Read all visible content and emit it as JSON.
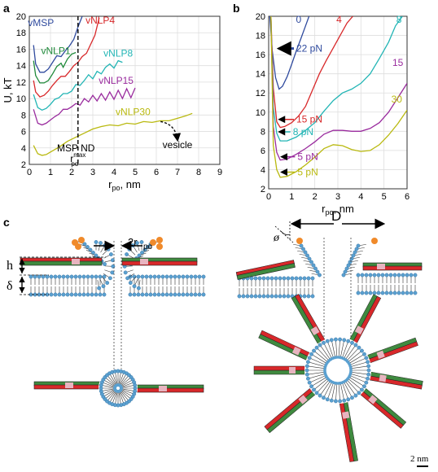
{
  "panel_labels": {
    "a": "a",
    "b": "b",
    "c": "c"
  },
  "panel_c": {
    "width_label": "2r",
    "width_label_sub": "po",
    "diameter_label": "D",
    "angle_label": "ø",
    "height_label": "h",
    "thickness_label": "δ",
    "scale_bar_label": "2 nm"
  },
  "chart_data": [
    {
      "type": "line",
      "title": "",
      "xlabel": "r",
      "xlabel_sub": "po",
      "xlabel_unit": ", nm",
      "ylabel": "U, kT",
      "xlim": [
        0,
        9
      ],
      "ylim": [
        2,
        20
      ],
      "xticks": [
        0,
        1,
        2,
        3,
        4,
        5,
        6,
        7,
        8,
        9
      ],
      "yticks": [
        2,
        4,
        6,
        8,
        10,
        12,
        14,
        16,
        18,
        20
      ],
      "grid": true,
      "series": [
        {
          "name": "vMSP",
          "color": "#2f4a9e",
          "label_at": [
            0.55,
            18.8
          ],
          "x": [
            0.2,
            0.3,
            0.5,
            0.7,
            0.9,
            1.1,
            1.3,
            1.5,
            1.7,
            1.9,
            2.1,
            2.3,
            2.5
          ],
          "y": [
            16.5,
            14.2,
            13.2,
            13.2,
            13.6,
            14.4,
            15.2,
            15.1,
            15.8,
            16.4,
            17.2,
            18.7,
            20
          ]
        },
        {
          "name": "vNLP1",
          "color": "#1f8a3a",
          "label_at": [
            1.25,
            15.4
          ],
          "x": [
            0.2,
            0.3,
            0.5,
            0.7,
            0.9,
            1.1,
            1.3,
            1.5,
            1.6,
            1.8,
            2.0,
            2.2
          ],
          "y": [
            14.6,
            12.8,
            11.9,
            11.9,
            12.2,
            13.0,
            13.9,
            14.3,
            13.8,
            14.8,
            15.4,
            15.6
          ]
        },
        {
          "name": "vNLP4",
          "color": "#d8282a",
          "label_at": [
            3.35,
            19.1
          ],
          "x": [
            0.2,
            0.3,
            0.5,
            0.7,
            0.9,
            1.1,
            1.3,
            1.5,
            1.7,
            1.9,
            2.1,
            2.3,
            2.5,
            2.7,
            2.9,
            3.1,
            3.3
          ],
          "y": [
            12.2,
            10.8,
            10.2,
            10.4,
            10.9,
            11.6,
            12.2,
            12.7,
            12.7,
            13.3,
            14.0,
            14.4,
            15.1,
            15.5,
            16.6,
            17.7,
            19.8
          ]
        },
        {
          "name": "vNLP8",
          "color": "#22b5b5",
          "label_at": [
            4.2,
            15.1
          ],
          "x": [
            0.2,
            0.4,
            0.6,
            0.8,
            1.0,
            1.2,
            1.4,
            1.6,
            1.8,
            2.0,
            2.2,
            2.4,
            2.6,
            2.8,
            3.0,
            3.2,
            3.4,
            3.6,
            3.8,
            4.0,
            4.2,
            4.4
          ],
          "y": [
            10.5,
            8.9,
            8.6,
            8.8,
            9.3,
            9.9,
            10.1,
            10.6,
            10.6,
            10.9,
            11.7,
            11.6,
            12.2,
            12.9,
            12.4,
            13.3,
            13.0,
            13.8,
            14.2,
            13.7,
            14.6,
            14.4
          ]
        },
        {
          "name": "vNLP15",
          "color": "#9a2c9e",
          "label_at": [
            4.1,
            11.8
          ],
          "x": [
            0.2,
            0.4,
            0.6,
            0.8,
            1.0,
            1.2,
            1.4,
            1.6,
            1.8,
            2.0,
            2.2,
            2.4,
            2.6,
            2.8,
            3.0,
            3.2,
            3.4,
            3.6,
            3.8,
            4.0,
            4.2,
            4.4,
            4.6,
            4.8,
            5.0
          ],
          "y": [
            8.7,
            7.0,
            6.8,
            7.0,
            7.4,
            7.8,
            8.1,
            8.7,
            8.7,
            9.0,
            9.4,
            9.2,
            10.0,
            9.6,
            10.4,
            9.7,
            10.6,
            9.8,
            10.8,
            9.9,
            11.0,
            10.0,
            11.2,
            10.1,
            11.3
          ]
        },
        {
          "name": "vNLP30",
          "color": "#b9b90f",
          "label_at": [
            4.9,
            8.0
          ],
          "x": [
            0.2,
            0.4,
            0.6,
            0.8,
            1.0,
            1.4,
            1.8,
            2.2,
            2.6,
            3.0,
            3.4,
            3.8,
            4.2,
            4.6,
            5.0,
            5.4,
            5.8,
            6.2,
            6.6,
            7.0,
            7.4,
            7.7
          ],
          "y": [
            4.3,
            3.3,
            3.1,
            3.2,
            3.5,
            4.1,
            4.8,
            5.3,
            5.8,
            6.3,
            6.6,
            6.8,
            6.7,
            7.0,
            6.9,
            7.2,
            7.1,
            7.3,
            7.3,
            7.6,
            7.9,
            8.2
          ]
        }
      ],
      "annotations": [
        {
          "text": "MSP ND",
          "x": 2.2,
          "y": 3.6
        },
        {
          "text": "r",
          "sub": "po",
          "sup": "max",
          "x": 2.3,
          "y": 2.3
        },
        {
          "text": "vesicle",
          "x": 7.0,
          "y": 4.0
        }
      ],
      "vline_x": 2.3
    },
    {
      "type": "line",
      "title": "",
      "xlabel": "r",
      "xlabel_sub": "po",
      "xlabel_unit": ", nm",
      "ylabel": "",
      "xlim": [
        0,
        6
      ],
      "ylim": [
        2,
        20
      ],
      "xticks": [
        0,
        1,
        2,
        3,
        4,
        5,
        6
      ],
      "yticks": [
        2,
        4,
        6,
        8,
        10,
        12,
        14,
        16,
        18,
        20
      ],
      "grid": true,
      "series": [
        {
          "name": "0",
          "color": "#2f4a9e",
          "label_at": [
            1.3,
            19.3
          ],
          "x": [
            0.05,
            0.15,
            0.3,
            0.45,
            0.6,
            0.8,
            1.0,
            1.2,
            1.4,
            1.6,
            1.75
          ],
          "y": [
            20,
            16.5,
            13.6,
            12.4,
            12.7,
            13.7,
            15.0,
            16.4,
            17.7,
            19.0,
            20
          ]
        },
        {
          "name": "4",
          "color": "#d8282a",
          "label_at": [
            3.05,
            19.3
          ],
          "x": [
            0.1,
            0.2,
            0.35,
            0.5,
            0.7,
            1.0,
            1.3,
            1.6,
            1.9,
            2.2,
            2.5,
            2.8,
            3.1,
            3.4,
            3.65
          ],
          "y": [
            20,
            12.5,
            9.0,
            8.4,
            8.5,
            8.9,
            9.6,
            10.6,
            12.3,
            14.0,
            15.4,
            16.7,
            18.0,
            19.3,
            20
          ]
        },
        {
          "name": "8",
          "color": "#22b5b5",
          "label_at": [
            5.65,
            19.3
          ],
          "x": [
            0.1,
            0.2,
            0.35,
            0.5,
            0.8,
            1.2,
            1.6,
            2.0,
            2.4,
            2.8,
            3.2,
            3.6,
            4.0,
            4.4,
            4.8,
            5.2,
            5.5,
            5.8
          ],
          "y": [
            20,
            10.5,
            7.8,
            7.0,
            7.0,
            7.4,
            8.1,
            8.9,
            10.1,
            11.2,
            12.0,
            12.4,
            13.0,
            14.0,
            15.6,
            17.3,
            19.0,
            20
          ]
        },
        {
          "name": "15",
          "color": "#9a2c9e",
          "label_at": [
            5.6,
            14.8
          ],
          "x": [
            0.1,
            0.2,
            0.35,
            0.5,
            0.8,
            1.2,
            1.6,
            2.0,
            2.4,
            2.8,
            3.2,
            3.6,
            4.0,
            4.4,
            4.8,
            5.2,
            5.6,
            6.0
          ],
          "y": [
            20,
            8.5,
            5.8,
            5.0,
            5.1,
            5.6,
            6.2,
            6.9,
            7.7,
            8.1,
            8.1,
            8.0,
            8.0,
            8.3,
            8.9,
            10.0,
            11.5,
            13.0
          ]
        },
        {
          "name": "30",
          "color": "#b9b90f",
          "label_at": [
            5.55,
            11.0
          ],
          "x": [
            0.1,
            0.2,
            0.35,
            0.5,
            0.8,
            1.2,
            1.6,
            2.0,
            2.4,
            2.8,
            3.2,
            3.6,
            4.0,
            4.4,
            4.8,
            5.2,
            5.6,
            6.0
          ],
          "y": [
            20,
            6.5,
            4.0,
            3.2,
            3.3,
            3.8,
            4.5,
            5.3,
            6.2,
            6.6,
            6.5,
            6.1,
            5.9,
            6.0,
            6.6,
            7.6,
            8.8,
            10.2
          ]
        }
      ],
      "force_annotations": [
        {
          "text": "22 pN",
          "color": "#2f4a9e",
          "x": 1.2,
          "y": 16.3,
          "tip_x": 0.45
        },
        {
          "text": "15 pN",
          "color": "#d8282a",
          "x": 1.2,
          "y": 8.9,
          "tip_x": 0.45
        },
        {
          "text": "8 pN",
          "color": "#22b5b5",
          "x": 1.05,
          "y": 7.6,
          "tip_x": 0.45
        },
        {
          "text": "5 pN",
          "color": "#9a2c9e",
          "x": 1.25,
          "y": 5.0,
          "tip_x": 0.55
        },
        {
          "text": "5 pN",
          "color": "#b9b90f",
          "x": 1.25,
          "y": 3.4,
          "tip_x": 0.55
        }
      ]
    }
  ]
}
